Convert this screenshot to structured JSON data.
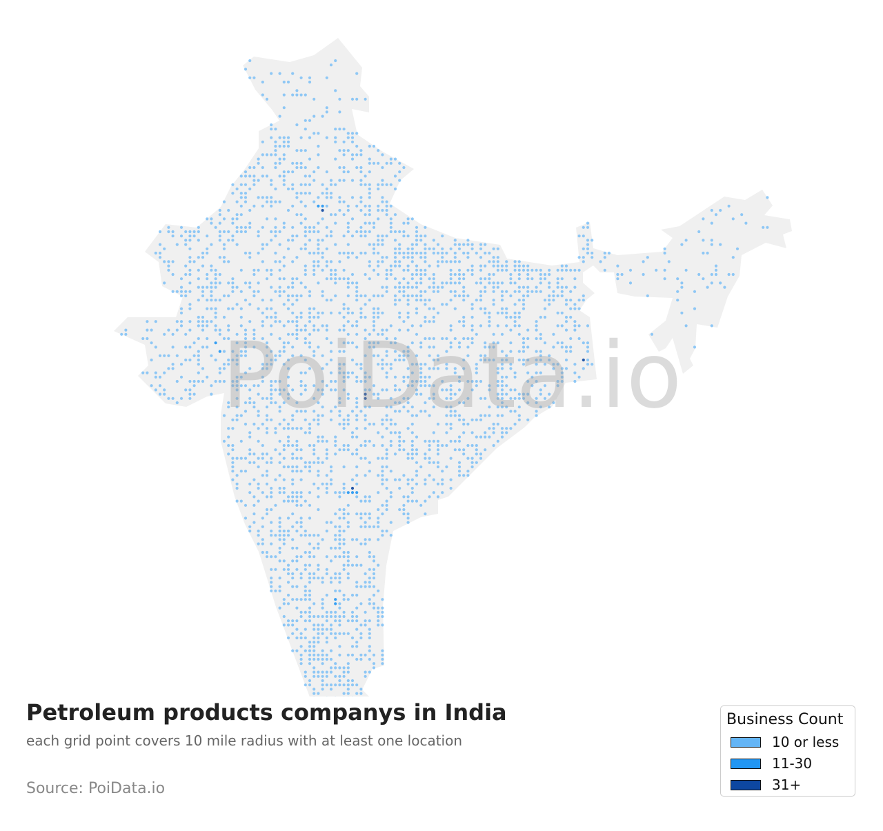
{
  "map": {
    "region": "India",
    "watermark": "PoiData.io",
    "land_color": "#f0f0f0",
    "point_colors": {
      "10 or less": "#64b5f6",
      "11-30": "#2196f3",
      "31+": "#0d47a1"
    },
    "grid_radius_miles": 10
  },
  "title": "Petroleum products companys in India",
  "subtitle": "each grid point covers 10 mile radius with at least one location",
  "source": "Source: PoiData.io",
  "legend": {
    "title": "Business Count",
    "items": [
      {
        "label": "10 or less",
        "color": "#64b5f6"
      },
      {
        "label": "11-30",
        "color": "#2196f3"
      },
      {
        "label": "31+",
        "color": "#0d47a1"
      }
    ]
  }
}
